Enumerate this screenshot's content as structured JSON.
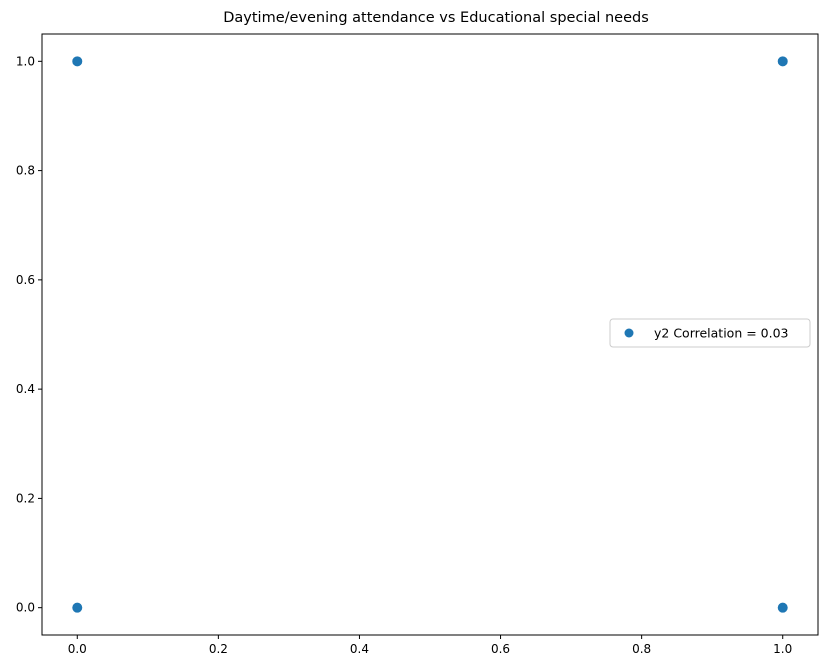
{
  "chart_data": {
    "type": "scatter",
    "title": "Daytime/evening attendance\t vs Educational special needs",
    "xlabel": "",
    "ylabel": "",
    "xlim": [
      -0.05,
      1.05
    ],
    "ylim": [
      -0.05,
      1.05
    ],
    "x_ticks": [
      "0.0",
      "0.2",
      "0.4",
      "0.6",
      "0.8",
      "1.0"
    ],
    "y_ticks": [
      "0.0",
      "0.2",
      "0.4",
      "0.6",
      "0.8",
      "1.0"
    ],
    "grid": false,
    "legend_position": "center-right",
    "series": [
      {
        "name": "y2 Correlation = 0.03",
        "color": "#1f77b4",
        "points": [
          {
            "x": 0,
            "y": 0
          },
          {
            "x": 0,
            "y": 1
          },
          {
            "x": 1,
            "y": 0
          },
          {
            "x": 1,
            "y": 1
          }
        ]
      }
    ]
  }
}
